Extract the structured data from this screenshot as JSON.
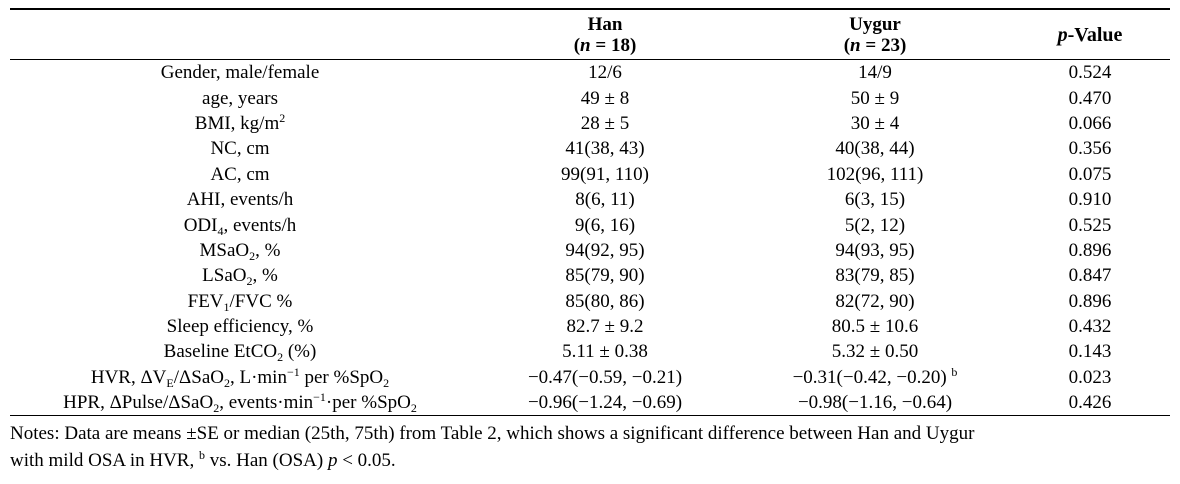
{
  "header": {
    "col_blank": "",
    "han_label": "Han",
    "han_n": "(n = 18)",
    "uygur_label": "Uygur",
    "uygur_n": "(n = 23)",
    "pvalue_label": "p-Value"
  },
  "rows": [
    {
      "label": "Gender, male/female",
      "han": "12/6",
      "uygur": "14/9",
      "p": "0.524"
    },
    {
      "label": "age, years",
      "han": "49 ± 8",
      "uygur": "50 ± 9",
      "p": "0.470"
    },
    {
      "label": "BMI, kg/m2",
      "han": "28 ± 5",
      "uygur": "30 ± 4",
      "p": "0.066"
    },
    {
      "label": "NC, cm",
      "han": "41(38, 43)",
      "uygur": "40(38, 44)",
      "p": "0.356"
    },
    {
      "label": "AC, cm",
      "han": "99(91, 110)",
      "uygur": "102(96, 111)",
      "p": "0.075"
    },
    {
      "label": "AHI, events/h",
      "han": "8(6, 11)",
      "uygur": "6(3, 15)",
      "p": "0.910"
    },
    {
      "label": "ODI4, events/h",
      "han": "9(6, 16)",
      "uygur": "5(2, 12)",
      "p": "0.525"
    },
    {
      "label": "MSaO2, %",
      "han": "94(92, 95)",
      "uygur": "94(93, 95)",
      "p": "0.896"
    },
    {
      "label": "LSaO2, %",
      "han": "85(79, 90)",
      "uygur": "83(79, 85)",
      "p": "0.847"
    },
    {
      "label": "FEV1/FVC %",
      "han": "85(80, 86)",
      "uygur": "82(72, 90)",
      "p": "0.896"
    },
    {
      "label": "Sleep efficiency, %",
      "han": "82.7 ± 9.2",
      "uygur": "80.5 ± 10.6",
      "p": "0.432"
    },
    {
      "label": "Baseline EtCO2 (%)",
      "han": "5.11 ± 0.38",
      "uygur": "5.32 ± 0.50",
      "p": "0.143"
    },
    {
      "label": "HVR, ΔVE/ΔSaO2, L·min−1 per %SpO2",
      "han": "−0.47(−0.59, −0.21)",
      "uygur": "−0.31(−0.42, −0.20) b",
      "p": "0.023"
    },
    {
      "label": "HPR, ΔPulse/ΔSaO2, events·min−1·per %SpO2",
      "han": "−0.96(−1.24, −0.69)",
      "uygur": "−0.98(−1.16, −0.64)",
      "p": "0.426"
    }
  ],
  "notes": {
    "line1": "Notes: Data are means ±SE or median (25th, 75th) from Table 2, which shows a significant difference between Han and Uygur",
    "line2": "with mild OSA in HVR, b vs. Han (OSA) p < 0.05."
  }
}
